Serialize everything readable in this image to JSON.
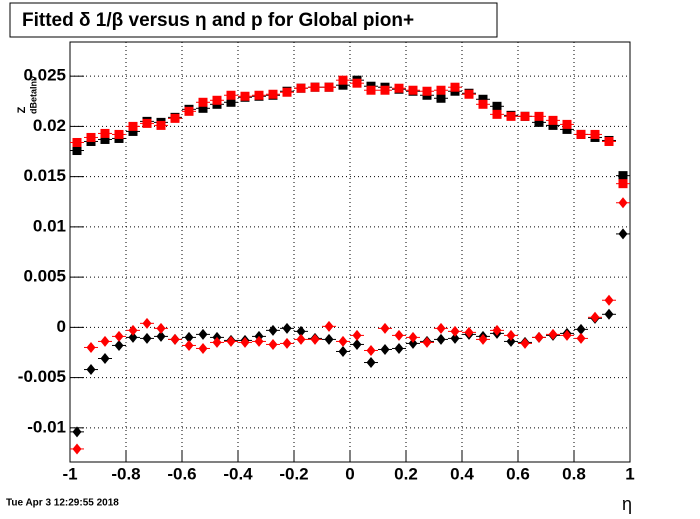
{
  "chart_data": {
    "type": "scatter",
    "title": "Fitted δ 1/β versus η and p for Global pion+",
    "x_label": "η",
    "y_label": "Z",
    "y_label_sub": "dBetaInv",
    "timestamp": "Tue Apr  3 12:29:55 2018",
    "xlim": [
      -1,
      1
    ],
    "ylim": [
      -0.0134,
      0.0284
    ],
    "xticks": [
      -1,
      -0.8,
      -0.6,
      -0.4,
      -0.2,
      0,
      0.2,
      0.4,
      0.6,
      0.8,
      1
    ],
    "yticks": [
      -0.01,
      -0.005,
      0,
      0.005,
      0.01,
      0.015,
      0.02,
      0.025
    ],
    "grid": true,
    "x": [
      -0.975,
      -0.925,
      -0.875,
      -0.825,
      -0.775,
      -0.725,
      -0.675,
      -0.625,
      -0.575,
      -0.525,
      -0.475,
      -0.425,
      -0.375,
      -0.325,
      -0.275,
      -0.225,
      -0.175,
      -0.125,
      -0.075,
      -0.025,
      0.025,
      0.075,
      0.125,
      0.175,
      0.225,
      0.275,
      0.325,
      0.375,
      0.425,
      0.475,
      0.525,
      0.575,
      0.625,
      0.675,
      0.725,
      0.775,
      0.825,
      0.875,
      0.925,
      0.975
    ],
    "series": [
      {
        "color": "#000000",
        "marker": "square",
        "values": [
          0.0176,
          0.0185,
          0.0187,
          0.0188,
          0.0195,
          0.0205,
          0.0204,
          0.0209,
          0.0217,
          0.0218,
          0.0222,
          0.0224,
          0.0229,
          0.023,
          0.0231,
          0.0235,
          0.0238,
          0.0239,
          0.0239,
          0.0241,
          0.0246,
          0.024,
          0.0239,
          0.0237,
          0.0235,
          0.0231,
          0.0228,
          0.0235,
          0.0233,
          0.0227,
          0.022,
          0.0211,
          0.021,
          0.0204,
          0.0201,
          0.0197,
          0.0192,
          0.0189,
          0.0186,
          0.0151
        ]
      },
      {
        "color": "#ff0000",
        "marker": "square",
        "values": [
          0.0184,
          0.0189,
          0.0193,
          0.0192,
          0.02,
          0.0203,
          0.0201,
          0.0208,
          0.0215,
          0.0224,
          0.0226,
          0.0231,
          0.023,
          0.0231,
          0.0232,
          0.0234,
          0.0238,
          0.0239,
          0.0239,
          0.0246,
          0.0243,
          0.0236,
          0.0236,
          0.0238,
          0.0236,
          0.0235,
          0.0236,
          0.0239,
          0.0232,
          0.0222,
          0.0212,
          0.021,
          0.021,
          0.021,
          0.0206,
          0.0202,
          0.0192,
          0.0192,
          0.0185,
          0.0143
        ]
      },
      {
        "color": "#000000",
        "marker": "diamond",
        "values": [
          -0.0104,
          -0.0042,
          -0.0031,
          -0.0018,
          -0.001,
          -0.0011,
          -0.0009,
          -0.0012,
          -0.001,
          -0.0007,
          -0.001,
          -0.0013,
          -0.0013,
          -0.0009,
          -0.0003,
          -0.0001,
          -0.0004,
          -0.0011,
          -0.0012,
          -0.0024,
          -0.0017,
          -0.0035,
          -0.0022,
          -0.0021,
          -0.0016,
          -0.0014,
          -0.0012,
          -0.0011,
          -0.0007,
          -0.0009,
          -0.0006,
          -0.0014,
          -0.0015,
          -0.001,
          -0.0008,
          -0.0006,
          -0.0002,
          0.0009,
          0.0013,
          0.0093
        ]
      },
      {
        "color": "#ff0000",
        "marker": "diamond",
        "values": [
          -0.0121,
          -0.002,
          -0.0014,
          -0.0009,
          -0.0003,
          0.0004,
          -0.0001,
          -0.0012,
          -0.0018,
          -0.0021,
          -0.0015,
          -0.0014,
          -0.0015,
          -0.0014,
          -0.0017,
          -0.0016,
          -0.0012,
          -0.0012,
          0.0001,
          -0.0014,
          -0.0008,
          -0.0023,
          -0.0001,
          -0.0008,
          -0.001,
          -0.0015,
          -0.0001,
          -0.0004,
          -0.0005,
          -0.0012,
          -0.0003,
          -0.0008,
          -0.0016,
          -0.001,
          -0.0007,
          -0.0008,
          -0.0011,
          0.001,
          0.0027,
          0.0124
        ]
      }
    ]
  }
}
